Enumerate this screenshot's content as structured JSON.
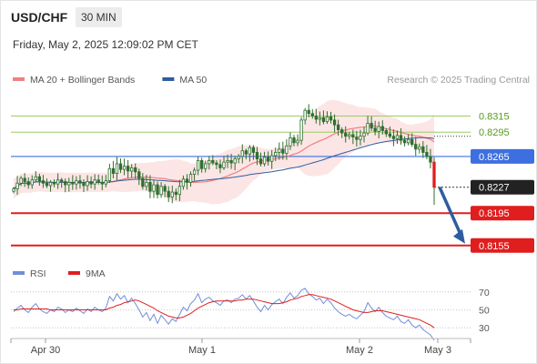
{
  "header": {
    "symbol": "USD/CHF",
    "timeframe": "30 MIN",
    "datetime": "Friday, May 2, 2025 12:09:02 PM CET"
  },
  "colors": {
    "ma20": "#f08080",
    "ma50": "#2e5d9f",
    "candle": "#2f6f2f",
    "green_level": "#9ccc65",
    "blue_level": "#3d6fe0",
    "red_level": "#e01e1e",
    "rsi": "#6f8fd8",
    "rsi_ma": "#e01e1e",
    "arrow": "#2e5d9f"
  },
  "chart_data": [
    {
      "type": "candlestick",
      "title": "",
      "legend": [
        {
          "label": "MA 20 + Bollinger Bands",
          "color": "#f08080"
        },
        {
          "label": "MA 50",
          "color": "#2e5d9f"
        }
      ],
      "legend_position": "top-left",
      "watermark": "Research © 2025 Trading Central",
      "ylim": [
        0.8148,
        0.8338
      ],
      "x_ticks": [
        "Apr 30",
        "May 1",
        "May 2",
        "May 3"
      ],
      "levels": [
        {
          "value": 0.8315,
          "label": "0.8315",
          "kind": "resistance"
        },
        {
          "value": 0.8295,
          "label": "0.8295",
          "kind": "resistance"
        },
        {
          "value": 0.8265,
          "label": "0.8265",
          "kind": "pivot"
        },
        {
          "value": 0.8227,
          "label": "0.8227",
          "kind": "last_price"
        },
        {
          "value": 0.8195,
          "label": "0.8195",
          "kind": "support"
        },
        {
          "value": 0.8155,
          "label": "0.8155",
          "kind": "support"
        }
      ],
      "closes": [
        0.8225,
        0.8232,
        0.8238,
        0.8234,
        0.823,
        0.8236,
        0.824,
        0.8235,
        0.8232,
        0.8229,
        0.8233,
        0.8231,
        0.8236,
        0.8234,
        0.823,
        0.8233,
        0.8231,
        0.8235,
        0.8232,
        0.8229,
        0.8234,
        0.8231,
        0.8236,
        0.8233,
        0.8231,
        0.8235,
        0.825,
        0.8244,
        0.8256,
        0.8249,
        0.8253,
        0.8247,
        0.8251,
        0.8246,
        0.8238,
        0.8228,
        0.8233,
        0.8222,
        0.823,
        0.8218,
        0.8228,
        0.8222,
        0.8215,
        0.8221,
        0.8218,
        0.8228,
        0.8237,
        0.8233,
        0.8243,
        0.8248,
        0.826,
        0.825,
        0.8256,
        0.826,
        0.8257,
        0.8255,
        0.8251,
        0.8258,
        0.826,
        0.8257,
        0.8262,
        0.8265,
        0.8272,
        0.8268,
        0.8276,
        0.827,
        0.8262,
        0.8256,
        0.8264,
        0.8259,
        0.8266,
        0.827,
        0.8274,
        0.8269,
        0.8278,
        0.8288,
        0.8282,
        0.8285,
        0.831,
        0.8322,
        0.8318,
        0.8315,
        0.8311,
        0.8313,
        0.8308,
        0.8314,
        0.831,
        0.8304,
        0.8298,
        0.8294,
        0.829,
        0.8292,
        0.8289,
        0.8286,
        0.829,
        0.8294,
        0.8306,
        0.83,
        0.8296,
        0.8302,
        0.8297,
        0.8293,
        0.829,
        0.8287,
        0.8291,
        0.8285,
        0.8282,
        0.8286,
        0.828,
        0.8274,
        0.8277,
        0.827,
        0.8265,
        0.8258,
        0.8227
      ],
      "rsi_panel": {
        "legend": [
          {
            "label": "RSI",
            "color": "#6f8fd8"
          },
          {
            "label": "9MA",
            "color": "#e01e1e"
          }
        ],
        "ylim": [
          20,
          80
        ],
        "y_ticks": [
          70,
          50,
          30
        ],
        "rsi": [
          48,
          52,
          55,
          50,
          47,
          53,
          57,
          51,
          48,
          46,
          50,
          48,
          53,
          51,
          47,
          50,
          48,
          52,
          49,
          46,
          51,
          48,
          53,
          50,
          48,
          52,
          65,
          60,
          68,
          62,
          66,
          58,
          63,
          57,
          50,
          42,
          47,
          38,
          45,
          35,
          44,
          39,
          34,
          40,
          37,
          45,
          53,
          49,
          57,
          61,
          68,
          58,
          62,
          64,
          60,
          58,
          55,
          60,
          61,
          58,
          62,
          63,
          67,
          62,
          66,
          60,
          53,
          48,
          55,
          50,
          56,
          59,
          62,
          57,
          64,
          69,
          63,
          66,
          72,
          74,
          68,
          65,
          61,
          63,
          57,
          62,
          58,
          52,
          48,
          45,
          43,
          45,
          42,
          40,
          44,
          48,
          58,
          52,
          48,
          53,
          47,
          43,
          41,
          39,
          43,
          37,
          35,
          39,
          33,
          30,
          33,
          28,
          25,
          22,
          16
        ],
        "rsi_ma": [
          50,
          50,
          51,
          51,
          51,
          51,
          51,
          51,
          51,
          51,
          50,
          50,
          50,
          50,
          50,
          50,
          50,
          50,
          50,
          50,
          50,
          50,
          50,
          50,
          50,
          50,
          52,
          53,
          55,
          56,
          58,
          59,
          60,
          61,
          60,
          58,
          56,
          54,
          52,
          49,
          47,
          45,
          43,
          42,
          41,
          41,
          42,
          44,
          46,
          49,
          52,
          54,
          56,
          58,
          59,
          60,
          60,
          60,
          60,
          60,
          60,
          61,
          61,
          62,
          62,
          62,
          61,
          60,
          59,
          58,
          57,
          57,
          57,
          58,
          59,
          61,
          62,
          63,
          65,
          66,
          67,
          67,
          66,
          65,
          64,
          63,
          62,
          60,
          58,
          56,
          54,
          52,
          50,
          49,
          48,
          47,
          47,
          48,
          49,
          49,
          49,
          48,
          47,
          46,
          45,
          44,
          43,
          42,
          41,
          40,
          39,
          37,
          35,
          33,
          30
        ]
      }
    }
  ]
}
